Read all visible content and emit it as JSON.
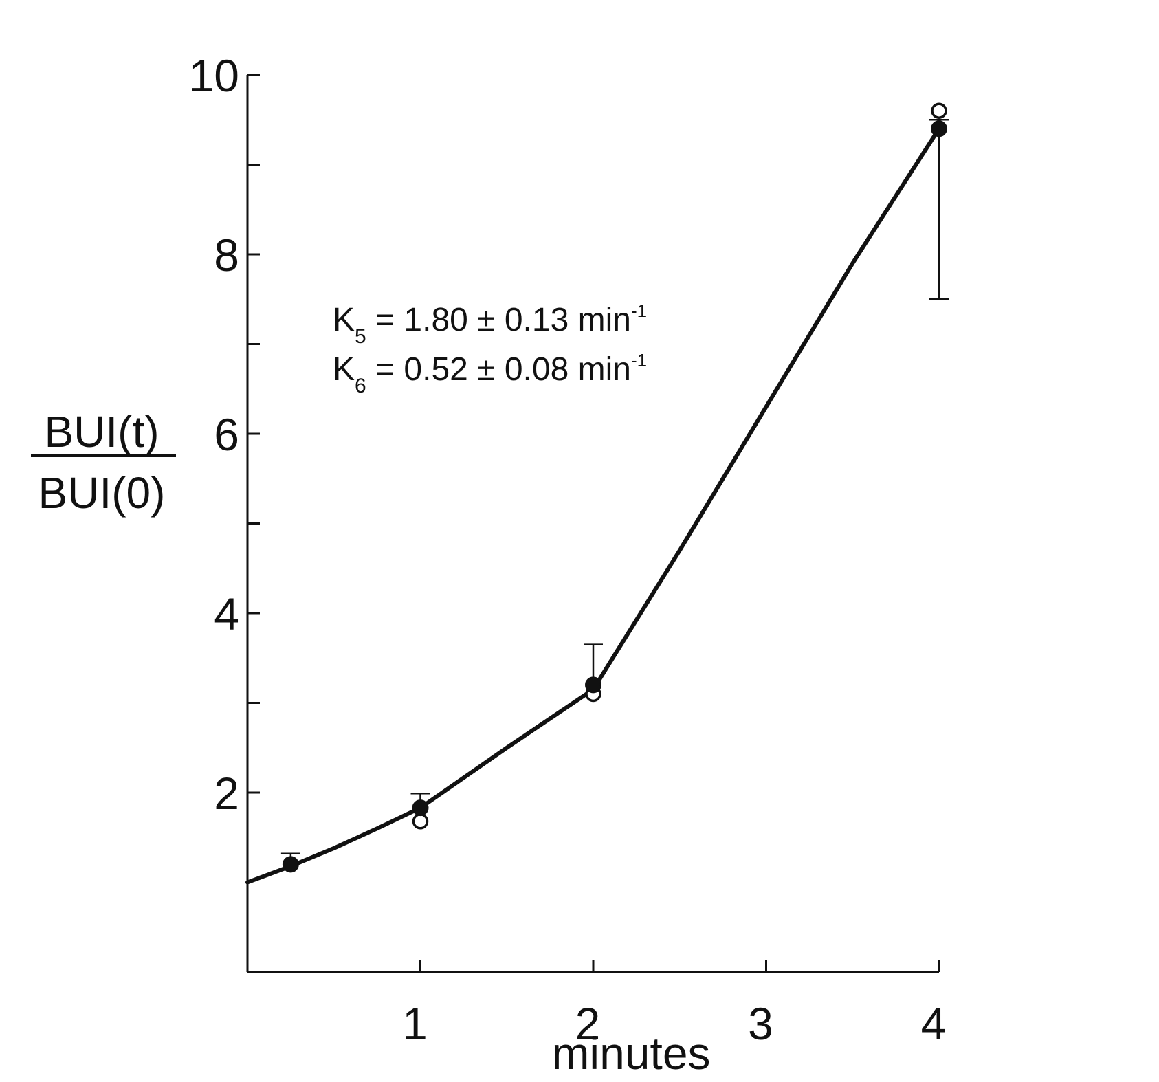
{
  "chart_data": {
    "type": "scatter",
    "xlabel": "minutes",
    "ylabel": {
      "numerator": "BUI(t)",
      "denominator": "BUI(0)"
    },
    "xlim": [
      0,
      4
    ],
    "ylim": [
      0,
      10
    ],
    "x_ticks": [
      1,
      2,
      3,
      4
    ],
    "x_tick_labels": [
      "1",
      "2",
      "3",
      "4"
    ],
    "y_ticks": [
      2,
      3,
      4,
      5,
      6,
      7,
      8,
      9,
      10
    ],
    "y_tick_labels": [
      "2",
      "",
      "4",
      "",
      "6",
      "",
      "8",
      "",
      "10"
    ],
    "grid": false,
    "series": [
      {
        "marker": "filled-circle",
        "x": [
          0.25,
          1,
          2,
          4
        ],
        "y": [
          1.2,
          1.83,
          3.2,
          9.4
        ],
        "error_high": [
          1.32,
          1.99,
          3.65,
          9.5
        ],
        "error_low": [
          1.2,
          1.83,
          3.2,
          7.5
        ]
      },
      {
        "marker": "open-circle",
        "x": [
          0.25,
          1,
          2,
          4
        ],
        "y": [
          1.2,
          1.68,
          3.1,
          9.6
        ]
      }
    ],
    "fit_line": {
      "x": [
        0,
        0.25,
        0.5,
        0.75,
        1,
        1.5,
        2,
        2.5,
        3,
        3.5,
        4
      ],
      "y": [
        1.0,
        1.18,
        1.38,
        1.6,
        1.83,
        2.5,
        3.15,
        4.7,
        6.3,
        7.9,
        9.4
      ]
    },
    "annotations": [
      {
        "k": "K",
        "sub": "5",
        "text": " = 1.80 ± 0.13 min",
        "sup": "-1"
      },
      {
        "k": "K",
        "sub": "6",
        "text": "  = 0.52 ± 0.08 min",
        "sup": "-1"
      }
    ],
    "colors": {
      "ink": "#111111",
      "background": "#ffffff"
    }
  }
}
